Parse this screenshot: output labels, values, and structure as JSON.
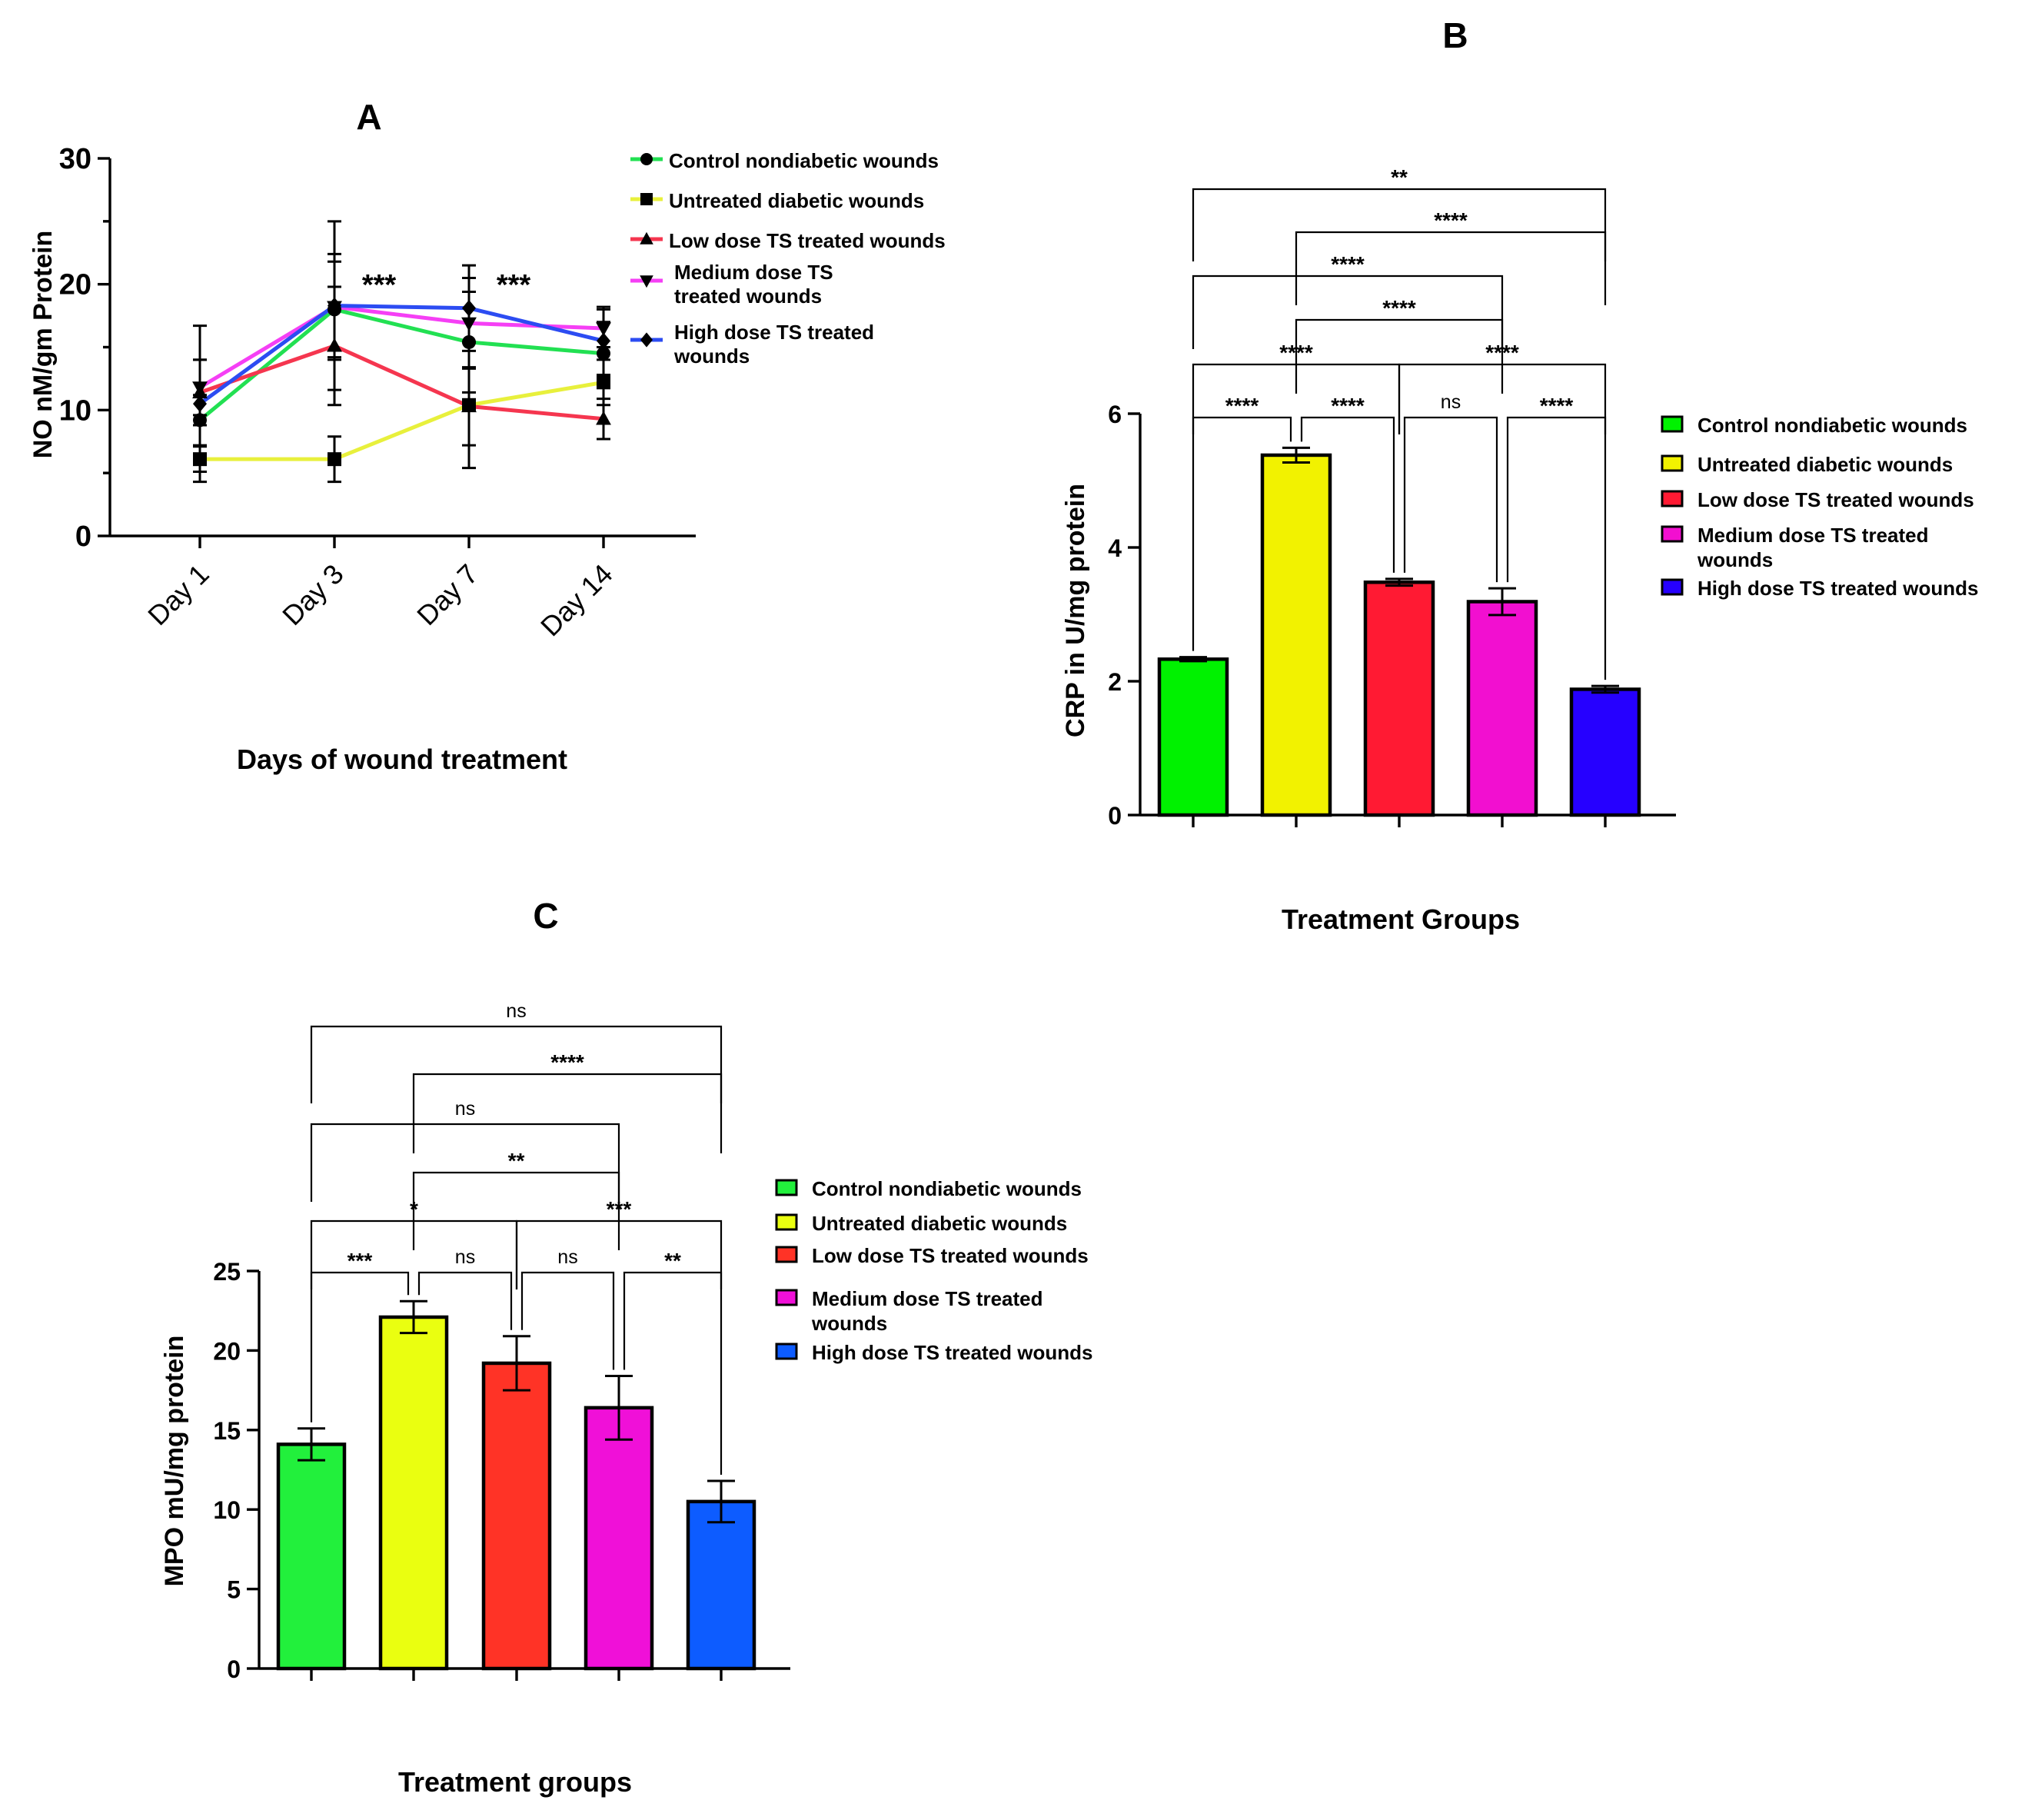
{
  "chart_data": [
    {
      "panel": "A",
      "type": "line",
      "title": "A",
      "xlabel": "Days of wound treatment",
      "ylabel": "NO nM/gm Protein",
      "categories": [
        "Day 1",
        "Day 3",
        "Day 7",
        "Day 14"
      ],
      "ylim": [
        0,
        30
      ],
      "yticks": [
        "0",
        "10",
        "20",
        "30"
      ],
      "series": [
        {
          "name": "Control nondiabetic wounds",
          "color": "#22e052",
          "marker": "circle",
          "values": [
            9.2,
            18.0,
            15.4,
            14.5
          ],
          "errors": [
            2.0,
            3.8,
            4.0,
            2.5
          ]
        },
        {
          "name": "Untreated diabetic wounds",
          "color": "#e8f03c",
          "marker": "square",
          "values": [
            6.1,
            6.1,
            10.4,
            12.2
          ],
          "errors": [
            1.0,
            1.8,
            5.0,
            1.8
          ]
        },
        {
          "name": "Low dose TS treated wounds",
          "color": "#f5364f",
          "marker": "triangle-up",
          "values": [
            11.4,
            15.1,
            10.3,
            9.3
          ],
          "errors": [
            2.6,
            4.7,
            3.1,
            1.6
          ]
        },
        {
          "name": "Medium dose TS treated wounds",
          "color": "#f53ff5",
          "marker": "triangle-down",
          "values": [
            11.8,
            18.2,
            16.9,
            16.5
          ],
          "errors": [
            2.2,
            4.2,
            3.6,
            1.5
          ]
        },
        {
          "name": "High dose TS treated wounds",
          "color": "#2c4cf2",
          "marker": "diamond",
          "values": [
            10.5,
            18.3,
            18.1,
            15.5
          ],
          "errors": [
            6.2,
            6.7,
            3.4,
            2.7
          ]
        }
      ],
      "legend": [
        "Control nondiabetic wounds",
        "Untreated diabetic wounds",
        "Low dose TS treated wounds",
        "Medium dose TS\ntreated wounds",
        "High dose TS treated\nwounds"
      ],
      "annotations": [
        {
          "category": "Day 3",
          "text": "***"
        },
        {
          "category": "Day 7",
          "text": "***"
        }
      ]
    },
    {
      "panel": "B",
      "type": "bar",
      "title": "B",
      "xlabel": "Treatment Groups",
      "ylabel": "CRP in U/mg protein",
      "categories": [
        "Control nondiabetic wounds",
        "Untreated diabetic wounds",
        "Low dose TS treated wounds",
        "Medium dose TS treated wounds",
        "High dose TS treated wounds"
      ],
      "values": [
        2.33,
        5.38,
        3.48,
        3.19,
        1.88
      ],
      "errors": [
        0.03,
        0.11,
        0.05,
        0.2,
        0.05
      ],
      "colors": [
        "#00f200",
        "#f2f200",
        "#ff1a33",
        "#f20fd0",
        "#2600ff"
      ],
      "ylim": [
        0,
        6
      ],
      "yticks": [
        "0",
        "2",
        "4",
        "6"
      ],
      "legend": [
        "Control nondiabetic wounds",
        "Untreated diabetic wounds",
        "Low dose TS treated wounds",
        "Medium dose TS treated\nwounds",
        "High dose TS treated wounds"
      ],
      "comparisons": [
        {
          "from": 0,
          "to": 1,
          "level": 0,
          "text": "****"
        },
        {
          "from": 1,
          "to": 2,
          "level": 0,
          "text": "****"
        },
        {
          "from": 2,
          "to": 3,
          "level": 0,
          "text": "ns"
        },
        {
          "from": 3,
          "to": 4,
          "level": 0,
          "text": "****"
        },
        {
          "from": 0,
          "to": 2,
          "level": 1,
          "text": "****"
        },
        {
          "from": 2,
          "to": 4,
          "level": 1,
          "text": "****"
        },
        {
          "from": 1,
          "to": 3,
          "level": 2,
          "text": "****"
        },
        {
          "from": 0,
          "to": 3,
          "level": 3,
          "text": "****"
        },
        {
          "from": 1,
          "to": 4,
          "level": 4,
          "text": "****"
        },
        {
          "from": 0,
          "to": 4,
          "level": 5,
          "text": "**"
        }
      ]
    },
    {
      "panel": "C",
      "type": "bar",
      "title": "C",
      "xlabel": "Treatment groups",
      "ylabel": "MPO mU/mg protein",
      "categories": [
        "Control nondiabetic wounds",
        "Untreated diabetic wounds",
        "Low dose TS treated wounds",
        "Medium dose TS treated wounds",
        "High dose TS treated wounds"
      ],
      "values": [
        14.1,
        22.1,
        19.2,
        16.4,
        10.5
      ],
      "errors": [
        1.0,
        1.0,
        1.7,
        2.0,
        1.3
      ],
      "colors": [
        "#22f03c",
        "#eaff10",
        "#ff3326",
        "#f010d8",
        "#0d5cff"
      ],
      "ylim": [
        0,
        25
      ],
      "yticks": [
        "0",
        "5",
        "10",
        "15",
        "20",
        "25"
      ],
      "legend": [
        "Control nondiabetic wounds",
        "Untreated diabetic wounds",
        "Low dose TS treated wounds",
        "Medium dose TS treated\nwounds",
        "High dose TS treated wounds"
      ],
      "comparisons": [
        {
          "from": 0,
          "to": 1,
          "level": 0,
          "text": "***"
        },
        {
          "from": 1,
          "to": 2,
          "level": 0,
          "text": "ns"
        },
        {
          "from": 2,
          "to": 3,
          "level": 0,
          "text": "ns"
        },
        {
          "from": 3,
          "to": 4,
          "level": 0,
          "text": "**"
        },
        {
          "from": 0,
          "to": 2,
          "level": 1,
          "text": "*"
        },
        {
          "from": 2,
          "to": 4,
          "level": 1,
          "text": "***"
        },
        {
          "from": 1,
          "to": 3,
          "level": 2,
          "text": "**"
        },
        {
          "from": 0,
          "to": 3,
          "level": 3,
          "text": "ns"
        },
        {
          "from": 1,
          "to": 4,
          "level": 4,
          "text": "****"
        },
        {
          "from": 0,
          "to": 4,
          "level": 5,
          "text": "ns"
        }
      ]
    }
  ]
}
